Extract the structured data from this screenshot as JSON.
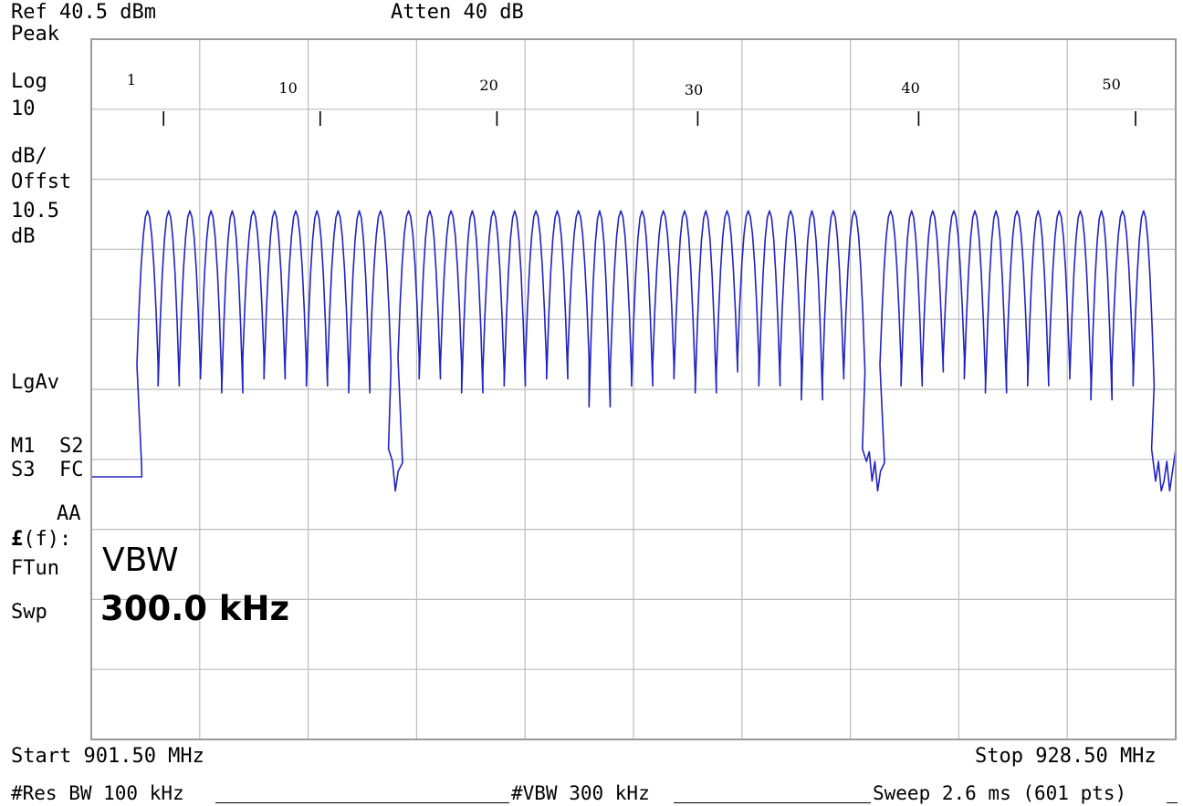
{
  "header": {
    "ref_level": "Ref 40.5 dBm",
    "attenuation": "Atten 40 dB"
  },
  "left_panel": {
    "lines": [
      "Peak",
      "Log",
      "10",
      "dB/",
      "Offst",
      "10.5",
      "dB"
    ],
    "detector": "LgAv",
    "trace_flags_1": "M1  S2",
    "trace_flags_2": "S3  FC",
    "trace_flags_3": "AA",
    "function_symbol": "£",
    "function_text": "(f):",
    "function_line_2": "FTun",
    "function_line_3": "Swp"
  },
  "active_function": {
    "name": "VBW",
    "value": "300.0 kHz"
  },
  "footer": {
    "start": "Start 901.50 MHz",
    "stop": "Stop 928.50 MHz",
    "res_bw": "#Res BW 100 kHz",
    "vbw": "#VBW 300 kHz",
    "sweep": "Sweep 2.6 ms (601 pts)"
  },
  "chart_data": {
    "type": "line",
    "x_range_mhz": [
      901.5,
      928.5
    ],
    "y_range_dbm": [
      -59.5,
      40.5
    ],
    "y_scale": "log 10 dB/div",
    "grid_divisions": {
      "x": 10,
      "y": 10
    },
    "grid": true,
    "trace_color": "#2323c0",
    "grid_color": "#bdbdbd",
    "channel_labels": [
      {
        "label": "1",
        "mhz": 902.5
      },
      {
        "label": "10",
        "mhz": 906.4
      },
      {
        "label": "20",
        "mhz": 911.4
      },
      {
        "label": "30",
        "mhz": 916.5
      },
      {
        "label": "40",
        "mhz": 921.9
      },
      {
        "label": "50",
        "mhz": 926.9
      }
    ],
    "marker_ticks_mhz": [
      903.3,
      907.2,
      911.6,
      916.6,
      922.1,
      927.5
    ],
    "channel_peak_dbm": 16,
    "noise_floor_dbm": -20,
    "segments": [
      {
        "from_mhz": 902.9,
        "to_mhz": 908.7,
        "spacing_mhz": 0.5,
        "trough_dbm": [
          -6,
          -9,
          -7,
          -8,
          -10,
          -5,
          -8,
          -6,
          -9,
          -7,
          -10,
          -6
        ]
      },
      {
        "from_mhz": 909.4,
        "to_mhz": 920.5,
        "spacing_mhz": 0.5,
        "trough_dbm": [
          -5,
          -8,
          -6,
          -10,
          -7,
          -9,
          -6,
          -8,
          -5,
          -12,
          -7,
          -9,
          -6,
          -8,
          -10,
          -7,
          -5,
          -9,
          -6,
          -11,
          -8,
          -7
        ]
      },
      {
        "from_mhz": 921.4,
        "to_mhz": 927.7,
        "spacing_mhz": 0.5,
        "trough_dbm": [
          -6,
          -9,
          -7,
          -5,
          -8,
          -10,
          -6,
          -9,
          -7,
          -8,
          -11,
          -6,
          -9
        ]
      }
    ]
  }
}
